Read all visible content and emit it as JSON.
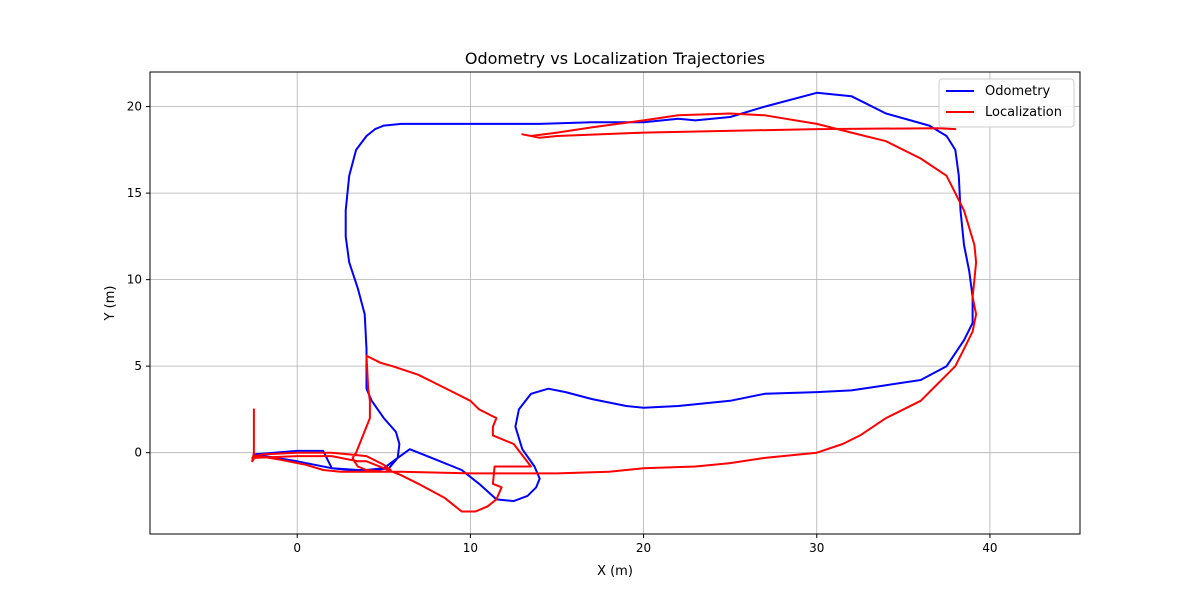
{
  "chart_data": {
    "type": "line",
    "title": "Odometry vs Localization Trajectories",
    "xlabel": "X (m)",
    "ylabel": "Y (m)",
    "xlim": [
      -8.5,
      45.2
    ],
    "ylim": [
      -4.7,
      22.0
    ],
    "xticks": [
      0,
      10,
      20,
      30,
      40
    ],
    "yticks": [
      0,
      5,
      10,
      15,
      20
    ],
    "grid": true,
    "legend_position": "top-right",
    "series": [
      {
        "name": "Odometry",
        "color": "#0000ff",
        "x": [
          -2.5,
          0,
          2,
          3,
          4,
          5,
          5.8,
          6.5,
          8,
          9.5,
          10.5,
          11.5,
          12.5,
          13.3,
          13.8,
          14.0,
          13.7,
          13.0,
          12.6,
          12.8,
          13.5,
          14.5,
          15.5,
          17,
          19,
          20,
          22,
          25,
          27,
          30,
          32,
          34,
          36,
          37.5,
          38.5,
          39.0,
          39.0,
          38.8,
          38.5,
          38.3,
          38.2,
          38.0,
          37.5,
          36.5,
          34,
          32,
          30,
          27,
          25,
          23,
          22,
          20,
          17,
          14,
          10,
          6,
          5,
          4.5,
          4.0,
          3.4,
          3.0,
          2.8,
          2.8,
          3.0,
          3.5,
          3.9,
          4.0,
          4.0,
          4.3,
          5.0,
          5.7,
          5.9,
          5.8,
          5.3,
          4.5,
          3.5,
          2,
          1.5,
          0,
          -2.5
        ],
        "y": [
          -0.1,
          -0.5,
          -0.9,
          -1.0,
          -1.0,
          -0.9,
          -0.3,
          0.2,
          -0.4,
          -1.0,
          -1.8,
          -2.7,
          -2.8,
          -2.5,
          -2.0,
          -1.5,
          -0.8,
          0.2,
          1.5,
          2.5,
          3.4,
          3.7,
          3.5,
          3.1,
          2.7,
          2.6,
          2.7,
          3.0,
          3.4,
          3.5,
          3.6,
          3.9,
          4.2,
          5.0,
          6.5,
          7.5,
          9.0,
          10.5,
          12.0,
          14.0,
          16.0,
          17.5,
          18.3,
          18.9,
          19.6,
          20.6,
          20.8,
          20.0,
          19.4,
          19.2,
          19.3,
          19.1,
          19.1,
          19.0,
          19.0,
          19.0,
          18.9,
          18.7,
          18.3,
          17.5,
          16.0,
          14.0,
          12.5,
          11.0,
          9.5,
          8.0,
          6.0,
          3.7,
          3.0,
          2.0,
          1.2,
          0.5,
          -0.3,
          -0.9,
          -1.0,
          -1.0,
          -0.9,
          0.1,
          0.1,
          -0.1
        ]
      },
      {
        "name": "Localization",
        "color": "#ff0000",
        "x": [
          -2.5,
          -2.5,
          -2.6,
          -2.4,
          -2.0,
          0,
          1,
          2,
          3,
          4,
          5,
          5.4,
          5.1,
          4.4,
          3.8,
          3.2,
          2.5,
          1.5,
          0.5,
          -1.0,
          -2.2,
          -2.5,
          -2.6,
          0,
          2,
          3.5,
          4,
          5,
          6,
          7,
          8.5,
          9.5,
          10.3,
          11,
          11.5,
          11.8,
          11.3,
          11.4,
          13.5,
          12.5,
          11.3,
          11.3,
          11.5,
          10.5,
          10,
          9,
          8,
          7,
          5.5,
          4.8,
          4.2,
          4.0,
          4.1,
          4.2,
          4.2,
          3.8,
          3.4,
          3.2,
          3.3,
          3.5,
          4,
          5,
          6,
          10,
          15,
          18,
          19,
          20,
          23,
          25,
          27,
          30,
          31.5,
          32.5,
          34,
          36,
          37,
          38,
          38.5,
          39.0,
          39.2,
          39.0,
          39.1,
          39.2,
          39.1,
          38.5,
          37.5,
          36,
          34,
          32,
          30,
          27,
          25,
          22,
          20,
          17,
          15,
          13.5,
          13.0,
          14.0,
          15.0,
          20.0,
          30.0,
          37.0,
          38.0
        ],
        "y": [
          2.5,
          0.0,
          -0.5,
          -0.2,
          -0.1,
          0.0,
          0.0,
          0.0,
          -0.1,
          -0.2,
          -0.7,
          -1.0,
          -1.1,
          -1.1,
          -1.1,
          -1.1,
          -1.1,
          -1.0,
          -0.7,
          -0.4,
          -0.2,
          -0.2,
          -0.3,
          -0.2,
          -0.2,
          -0.5,
          -0.5,
          -0.9,
          -1.3,
          -1.8,
          -2.6,
          -3.4,
          -3.4,
          -3.1,
          -2.7,
          -2.0,
          -1.8,
          -0.8,
          -0.8,
          0.5,
          1.0,
          1.5,
          2.0,
          2.5,
          3.0,
          3.5,
          4.0,
          4.5,
          5.0,
          5.2,
          5.5,
          5.6,
          3.7,
          3.0,
          2.0,
          1.0,
          0.0,
          -0.3,
          -0.5,
          -0.8,
          -1.0,
          -1.1,
          -1.1,
          -1.2,
          -1.2,
          -1.1,
          -1.0,
          -0.9,
          -0.8,
          -0.6,
          -0.3,
          0.0,
          0.5,
          1.0,
          2.0,
          3.0,
          4.0,
          5.0,
          6.0,
          7.0,
          8.0,
          9.0,
          10.0,
          11.0,
          12.0,
          14.0,
          16.0,
          17.0,
          18.0,
          18.5,
          19.0,
          19.5,
          19.6,
          19.5,
          19.2,
          18.8,
          18.5,
          18.3,
          18.4,
          18.2,
          18.3,
          18.5,
          18.7,
          18.75,
          18.7
        ]
      }
    ]
  }
}
